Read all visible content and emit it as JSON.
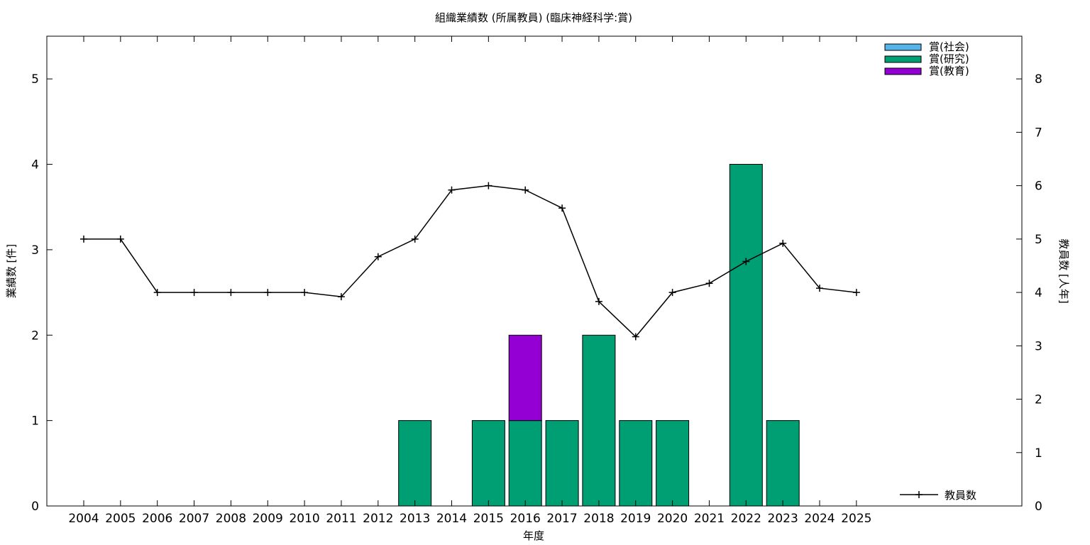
{
  "chart_data": {
    "type": "bar",
    "title": "組織業績数 (所属教員) (臨床神経科学:賞)",
    "xlabel": "年度",
    "ylabel": "業績数 [件]",
    "y2label": "教員数 [人年]",
    "ylim": [
      0,
      5.5
    ],
    "y2lim": [
      0,
      8.8
    ],
    "yticks": [
      0,
      1,
      2,
      3,
      4,
      5
    ],
    "y2ticks": [
      0,
      1,
      2,
      3,
      4,
      5,
      6,
      7,
      8
    ],
    "stacked": true,
    "grid": false,
    "legend_position": "top-right",
    "categories": [
      "2004",
      "2005",
      "2006",
      "2007",
      "2008",
      "2009",
      "2010",
      "2011",
      "2012",
      "2013",
      "2014",
      "2015",
      "2016",
      "2017",
      "2018",
      "2019",
      "2020",
      "2021",
      "2022",
      "2023",
      "2024",
      "2025"
    ],
    "series": [
      {
        "name": "賞(社会)",
        "color": "#56b4e9",
        "axis": "left",
        "values": [
          0,
          0,
          0,
          0,
          0,
          0,
          0,
          0,
          0,
          0,
          0,
          0,
          0,
          0,
          0,
          0,
          0,
          0,
          0,
          0,
          0,
          0
        ]
      },
      {
        "name": "賞(研究)",
        "color": "#009e73",
        "axis": "left",
        "values": [
          0,
          0,
          0,
          0,
          0,
          0,
          0,
          0,
          0,
          1,
          0,
          1,
          1,
          1,
          2,
          1,
          1,
          0,
          4,
          1,
          0,
          0
        ]
      },
      {
        "name": "賞(教育)",
        "color": "#9400d3",
        "axis": "left",
        "values": [
          0,
          0,
          0,
          0,
          0,
          0,
          0,
          0,
          0,
          0,
          0,
          0,
          1,
          0,
          0,
          0,
          0,
          0,
          0,
          0,
          0,
          0
        ]
      }
    ],
    "line": {
      "name": "教員数",
      "type": "line",
      "axis": "right",
      "color": "#000000",
      "values": [
        5,
        5,
        4,
        4,
        4,
        4,
        4,
        3.92,
        4.67,
        5,
        5.92,
        6,
        5.92,
        5.58,
        3.83,
        3.17,
        4,
        4.17,
        4.58,
        4.92,
        4.08,
        4
      ]
    }
  }
}
